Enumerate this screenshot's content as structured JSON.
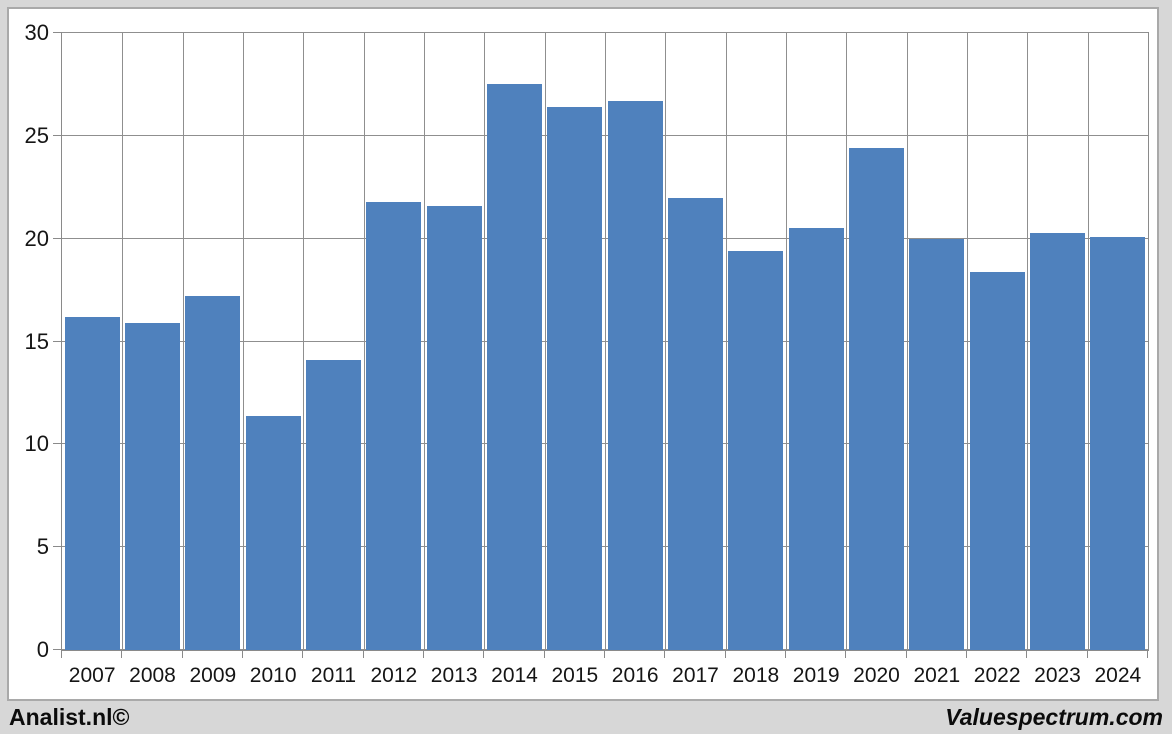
{
  "chart_data": {
    "type": "bar",
    "title": "",
    "xlabel": "",
    "ylabel": "",
    "categories": [
      "2007",
      "2008",
      "2009",
      "2010",
      "2011",
      "2012",
      "2013",
      "2014",
      "2015",
      "2016",
      "2017",
      "2018",
      "2019",
      "2020",
      "2021",
      "2022",
      "2023",
      "2024"
    ],
    "values": [
      16.2,
      15.9,
      17.2,
      11.4,
      14.1,
      21.8,
      21.6,
      27.5,
      26.4,
      26.7,
      22.0,
      19.4,
      20.5,
      24.4,
      20.0,
      18.4,
      20.3,
      20.1
    ],
    "ylim": [
      0,
      30
    ],
    "yticks": [
      0,
      5,
      10,
      15,
      20,
      25,
      30
    ],
    "grid": "horizontal-and-vertical gridlines, legend off",
    "colors": {
      "bar": "#4f81bd",
      "gridline": "#8f8f8f",
      "plot_border": "#8a8a8a",
      "panel_border": "#a9a9a9",
      "outer_background": "#d7d7d7",
      "plot_background": "#ffffff",
      "label_text": "#151515"
    }
  },
  "footer": {
    "left_brand": "Analist.nl©",
    "right_brand": "Valuespectrum.com"
  }
}
